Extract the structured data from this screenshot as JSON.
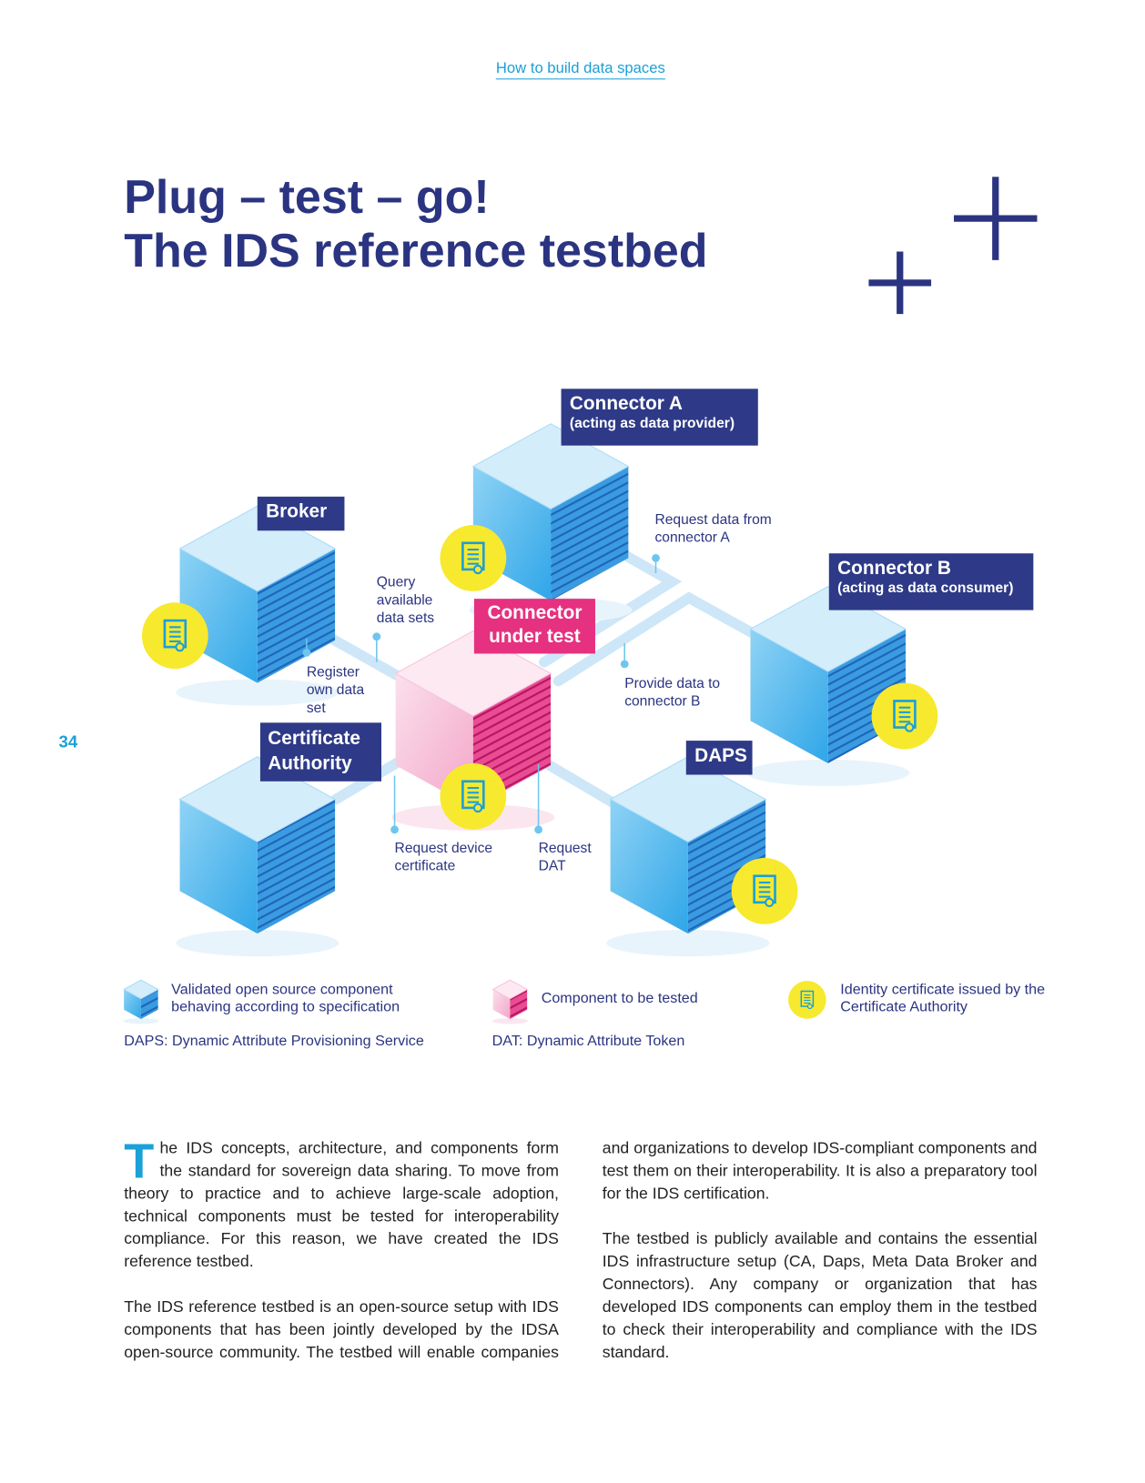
{
  "header": {
    "running_title": "How to build data spaces"
  },
  "page_number": "34",
  "title": {
    "lines": [
      "Plug – test – go!",
      "The IDS reference testbed"
    ]
  },
  "diagram": {
    "nodes": [
      {
        "label": "Connector A",
        "sublabel": "(acting as data provider)"
      },
      {
        "label": "Broker"
      },
      {
        "label": "Connector B",
        "sublabel": "(acting as data consumer)"
      },
      {
        "label": "Connector under test"
      },
      {
        "label": "Certificate Authority"
      },
      {
        "label": "DAPS"
      }
    ],
    "annotations": [
      "Request data from connector A",
      "Query available data sets",
      "Register own data set",
      "Provide data to connector B",
      "Request device certificate",
      "Request DAT"
    ]
  },
  "legend": {
    "items": [
      "Validated open source component behaving according to specification",
      "Component to be tested",
      "Identity certificate issued by the Certificate Authority"
    ],
    "abbreviations": [
      "DAPS: Dynamic Attribute Provisioning Service",
      "DAT: Dynamic Attribute Token"
    ]
  },
  "body": {
    "paragraphs": [
      "The IDS concepts, architecture, and components form the standard for sovereign data sharing. To move from theory to practice and to achieve large-scale adoption, technical components must be tested for interoperability compliance. For this reason, we have created the IDS reference testbed.",
      "The IDS reference testbed is an open-source setup with IDS components that has been jointly developed by the IDSA open-source community. The testbed will enable companies and organizations to develop IDS-compliant components and test them on their interoperability. It is also a preparatory tool for the IDS certification.",
      "The testbed is publicly available and contains the essential IDS infrastructure setup (CA, Daps, Meta Data Broker and Connectors). Any company or organization that has developed IDS components can employ them in the testbed to check their interoperability and compliance with the IDS standard."
    ]
  }
}
